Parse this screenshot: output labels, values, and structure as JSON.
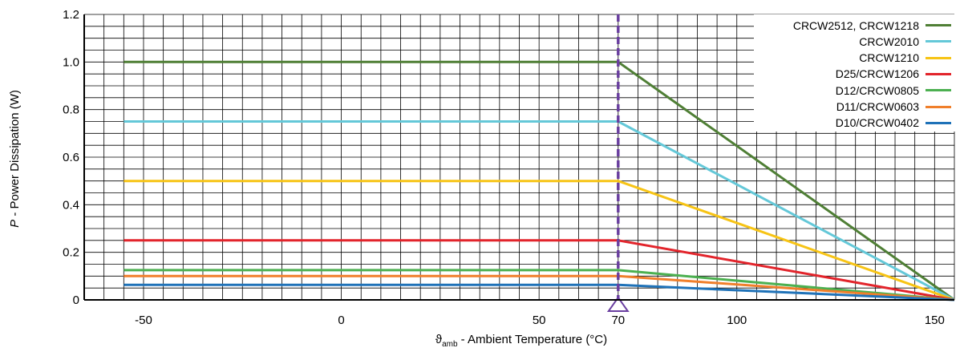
{
  "chart_data": {
    "type": "line",
    "xlabel_symbol": "ϑ",
    "xlabel_sub": "amb",
    "xlabel_text": " - Ambient Temperature (°C)",
    "ylabel_symbol": "P",
    "ylabel_text": " - Power Dissipation (W)",
    "xlim": [
      -65,
      155
    ],
    "ylim": [
      0,
      1.2
    ],
    "x_ticks": [
      -50,
      0,
      50,
      100,
      150
    ],
    "x_tick_labels": [
      "-50",
      "0",
      "50",
      "100",
      "150"
    ],
    "y_ticks": [
      0,
      0.2,
      0.4,
      0.6,
      0.8,
      1.0,
      1.2
    ],
    "y_tick_labels": [
      "0",
      "0.2",
      "0.4",
      "0.6",
      "0.8",
      "1.0",
      "1.2"
    ],
    "marker": {
      "x": 70,
      "label": "70",
      "color": "#6a3fa0"
    },
    "grid": true,
    "legend_position": "top-right",
    "series": [
      {
        "name": "CRCW2512, CRCW1218",
        "color": "#4f7f35",
        "x": [
          -55,
          70,
          155
        ],
        "y": [
          1.0,
          1.0,
          0
        ]
      },
      {
        "name": "CRCW2010",
        "color": "#64c8d8",
        "x": [
          -55,
          70,
          155
        ],
        "y": [
          0.75,
          0.75,
          0
        ]
      },
      {
        "name": "CRCW1210",
        "color": "#f7c415",
        "x": [
          -55,
          70,
          155
        ],
        "y": [
          0.5,
          0.5,
          0
        ]
      },
      {
        "name": "D25/CRCW1206",
        "color": "#e2242b",
        "x": [
          -55,
          70,
          155
        ],
        "y": [
          0.25,
          0.25,
          0
        ]
      },
      {
        "name": "D12/CRCW0805",
        "color": "#4cb050",
        "x": [
          -55,
          70,
          155
        ],
        "y": [
          0.125,
          0.125,
          0
        ]
      },
      {
        "name": "D11/CRCW0603",
        "color": "#f07f2b",
        "x": [
          -55,
          70,
          155
        ],
        "y": [
          0.1,
          0.1,
          0
        ]
      },
      {
        "name": "D10/CRCW0402",
        "color": "#1f72b8",
        "x": [
          -55,
          70,
          155
        ],
        "y": [
          0.063,
          0.063,
          0
        ]
      }
    ]
  }
}
